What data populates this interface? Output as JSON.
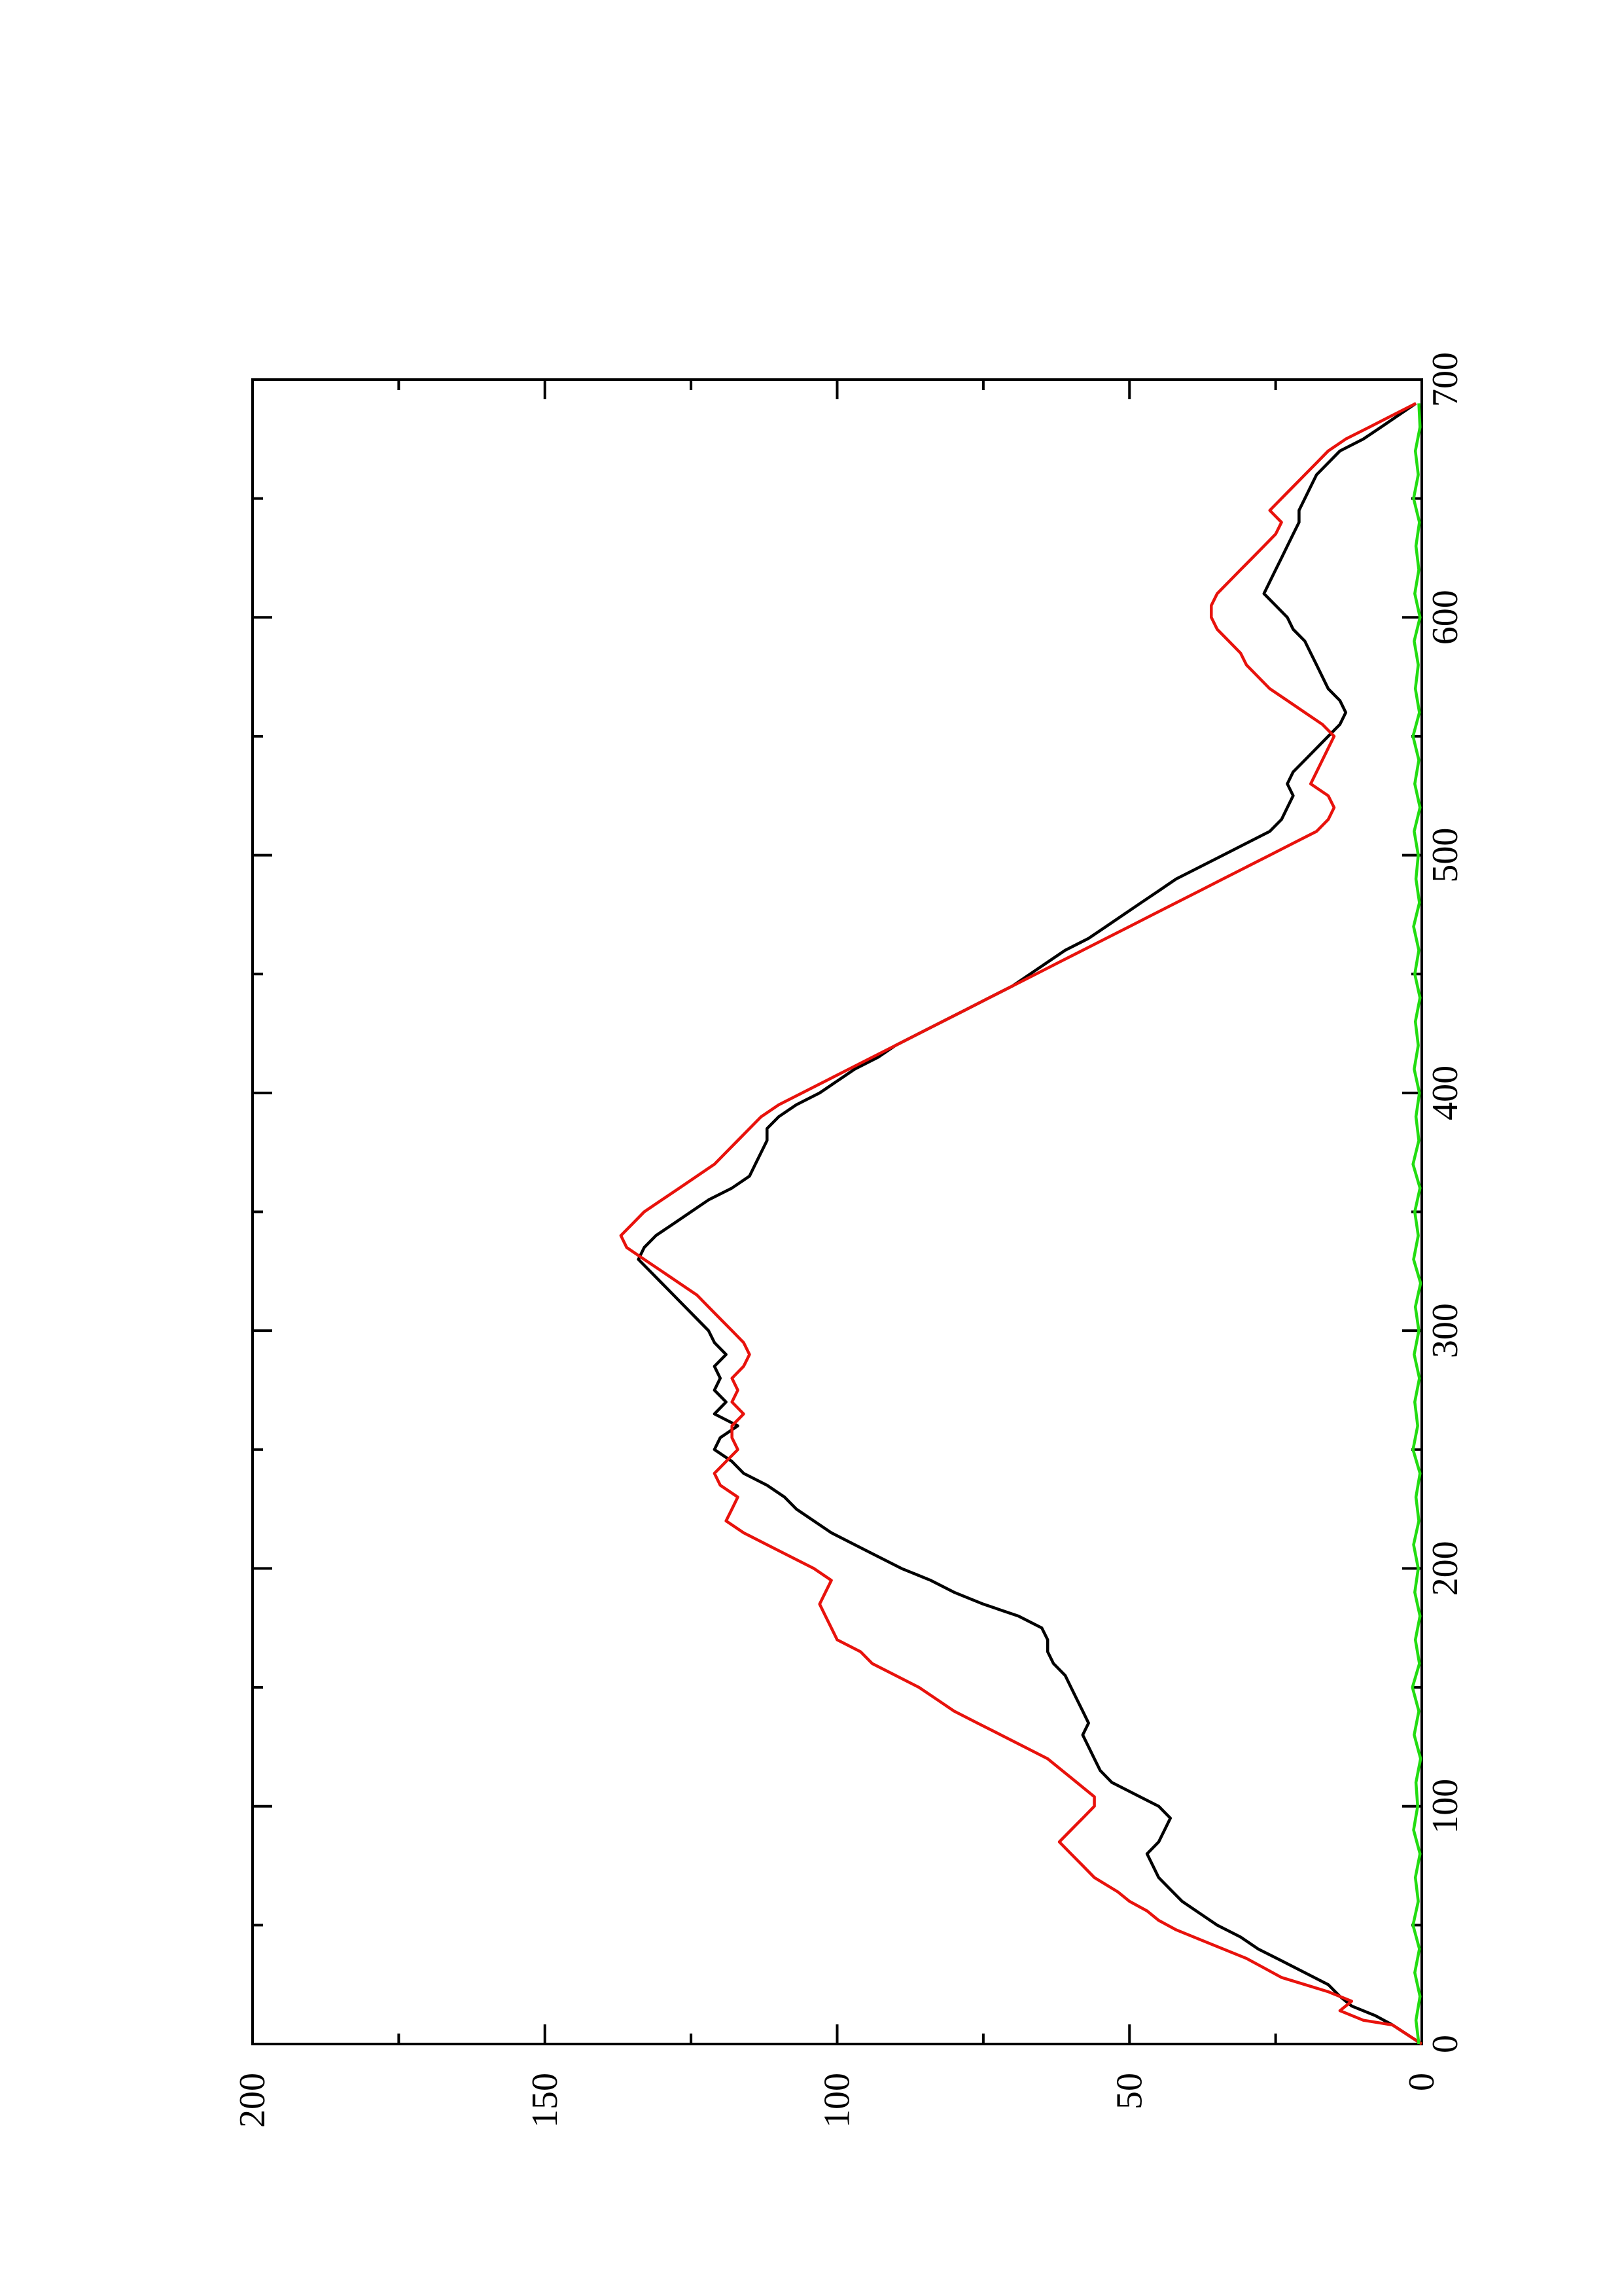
{
  "chart_data": {
    "type": "line",
    "title": "",
    "xlabel": "",
    "ylabel": "",
    "xlim": [
      0,
      700
    ],
    "ylim": [
      0,
      200
    ],
    "x_major_ticks": [
      0,
      100,
      200,
      300,
      400,
      500,
      600,
      700
    ],
    "x_minor_ticks": [
      50,
      150,
      250,
      350,
      450,
      550,
      650
    ],
    "y_major_ticks": [
      0,
      50,
      100,
      150,
      200
    ],
    "y_minor_ticks": [
      25,
      75,
      125,
      175
    ],
    "x_tick_labels": [
      "0",
      "100",
      "200",
      "300",
      "400",
      "500",
      "600",
      "700"
    ],
    "y_tick_labels": [
      "0",
      "50",
      "100",
      "150",
      "200"
    ],
    "grid": false,
    "legend": "none",
    "orientation": "page rotated 90 degrees counter-clockwise",
    "series": [
      {
        "color": "#000000",
        "x": [
          0,
          8,
          12,
          16,
          20,
          25,
          30,
          35,
          40,
          45,
          50,
          55,
          60,
          65,
          70,
          75,
          80,
          85,
          90,
          95,
          100,
          105,
          110,
          115,
          120,
          125,
          130,
          135,
          140,
          145,
          150,
          155,
          160,
          165,
          170,
          175,
          180,
          185,
          190,
          195,
          200,
          205,
          210,
          215,
          220,
          225,
          230,
          235,
          240,
          245,
          250,
          255,
          260,
          265,
          270,
          275,
          280,
          285,
          290,
          295,
          300,
          305,
          310,
          315,
          320,
          325,
          330,
          335,
          340,
          345,
          350,
          355,
          360,
          365,
          370,
          375,
          380,
          385,
          390,
          395,
          400,
          405,
          410,
          415,
          420,
          425,
          430,
          435,
          440,
          445,
          450,
          455,
          460,
          465,
          470,
          475,
          480,
          485,
          490,
          495,
          500,
          505,
          510,
          515,
          520,
          525,
          530,
          535,
          540,
          545,
          550,
          555,
          560,
          565,
          570,
          575,
          580,
          585,
          590,
          595,
          600,
          605,
          610,
          615,
          620,
          625,
          630,
          635,
          640,
          645,
          650,
          655,
          660,
          665,
          670,
          675,
          680,
          685,
          690
        ],
        "values": [
          0,
          5,
          8,
          12,
          14,
          16,
          20,
          24,
          28,
          31,
          35,
          38,
          41,
          43,
          45,
          46,
          47,
          45,
          44,
          43,
          45,
          49,
          53,
          55,
          56,
          57,
          58,
          57,
          58,
          59,
          60,
          61,
          63,
          64,
          64,
          65,
          69,
          75,
          80,
          84,
          89,
          93,
          97,
          101,
          104,
          107,
          109,
          112,
          116,
          118,
          121,
          120,
          117,
          121,
          119,
          121,
          120,
          121,
          119,
          121,
          122,
          124,
          126,
          128,
          130,
          132,
          134,
          133,
          131,
          128,
          125,
          122,
          118,
          115,
          114,
          113,
          112,
          112,
          110,
          107,
          103,
          100,
          97,
          93,
          90,
          86,
          82,
          78,
          74,
          70,
          67,
          64,
          61,
          57,
          54,
          51,
          48,
          45,
          42,
          38,
          34,
          30,
          26,
          24,
          23,
          22,
          23,
          22,
          20,
          18,
          16,
          14,
          13,
          14,
          16,
          17,
          18,
          19,
          20,
          22,
          23,
          25,
          27,
          26,
          25,
          24,
          23,
          22,
          21,
          21,
          20,
          19,
          18,
          16,
          14,
          10,
          7,
          4,
          1
        ]
      },
      {
        "color": "#e8120c",
        "x": [
          0,
          8,
          10,
          14,
          18,
          22,
          25,
          28,
          32,
          36,
          40,
          44,
          48,
          52,
          56,
          60,
          64,
          70,
          75,
          80,
          85,
          90,
          95,
          100,
          104,
          108,
          112,
          116,
          120,
          125,
          130,
          135,
          140,
          145,
          150,
          155,
          160,
          165,
          170,
          175,
          180,
          185,
          190,
          195,
          200,
          205,
          210,
          215,
          220,
          225,
          230,
          235,
          240,
          245,
          250,
          255,
          260,
          265,
          270,
          275,
          280,
          285,
          290,
          295,
          300,
          305,
          310,
          315,
          320,
          325,
          330,
          335,
          340,
          345,
          350,
          355,
          360,
          365,
          370,
          375,
          380,
          385,
          390,
          395,
          400,
          405,
          410,
          415,
          420,
          425,
          430,
          435,
          440,
          445,
          450,
          455,
          460,
          465,
          470,
          475,
          480,
          485,
          490,
          495,
          500,
          505,
          510,
          515,
          520,
          525,
          530,
          535,
          540,
          545,
          550,
          555,
          560,
          565,
          570,
          575,
          580,
          585,
          590,
          595,
          600,
          605,
          610,
          615,
          620,
          625,
          630,
          635,
          640,
          645,
          650,
          655,
          660,
          665,
          670,
          675,
          680,
          685,
          690
        ],
        "values": [
          0,
          5,
          10,
          14,
          12,
          16,
          20,
          24,
          27,
          30,
          34,
          38,
          42,
          45,
          47,
          50,
          52,
          56,
          58,
          60,
          62,
          60,
          58,
          56,
          56,
          58,
          60,
          62,
          64,
          68,
          72,
          76,
          80,
          83,
          86,
          90,
          94,
          96,
          100,
          101,
          102,
          103,
          102,
          101,
          104,
          108,
          112,
          116,
          119,
          118,
          117,
          120,
          121,
          119,
          117,
          118,
          118,
          116,
          118,
          117,
          118,
          116,
          115,
          116,
          118,
          120,
          122,
          124,
          127,
          130,
          133,
          136,
          137,
          135,
          133,
          130,
          127,
          124,
          121,
          119,
          117,
          115,
          113,
          110,
          106,
          102,
          98,
          94,
          90,
          86,
          82,
          78,
          74,
          70,
          66,
          62,
          58,
          54,
          50,
          46,
          42,
          38,
          34,
          30,
          26,
          22,
          18,
          16,
          15,
          16,
          19,
          18,
          17,
          16,
          15,
          17,
          20,
          23,
          26,
          28,
          30,
          31,
          33,
          35,
          36,
          36,
          35,
          33,
          31,
          29,
          27,
          25,
          24,
          26,
          24,
          22,
          20,
          18,
          16,
          13,
          9,
          5,
          1
        ]
      },
      {
        "color": "#22dd11",
        "x": [
          0,
          10,
          20,
          30,
          40,
          50,
          60,
          70,
          80,
          90,
          100,
          110,
          120,
          130,
          140,
          150,
          160,
          170,
          180,
          190,
          200,
          210,
          220,
          230,
          240,
          250,
          260,
          270,
          280,
          290,
          300,
          310,
          320,
          330,
          340,
          350,
          360,
          370,
          380,
          390,
          400,
          410,
          420,
          430,
          440,
          450,
          460,
          470,
          480,
          490,
          500,
          510,
          520,
          530,
          540,
          550,
          560,
          570,
          580,
          590,
          600,
          610,
          620,
          630,
          640,
          650,
          660,
          670,
          680,
          690
        ],
        "values": [
          0.5,
          1,
          0.3,
          1.2,
          0.4,
          1.5,
          0.6,
          1.1,
          0.3,
          1.4,
          0.7,
          1.0,
          0.2,
          1.3,
          0.5,
          1.6,
          0.4,
          1.1,
          0.3,
          1.2,
          0.6,
          1.4,
          0.5,
          1.0,
          0.3,
          1.5,
          0.7,
          1.2,
          0.4,
          1.3,
          0.5,
          1.1,
          0.2,
          1.4,
          0.6,
          1.2,
          0.3,
          1.5,
          0.5,
          1.0,
          0.4,
          1.3,
          0.6,
          1.1,
          0.3,
          1.2,
          0.5,
          1.4,
          0.4,
          1.0,
          0.6,
          1.3,
          0.3,
          1.2,
          0.5,
          1.5,
          0.4,
          1.1,
          0.6,
          1.3,
          0.3,
          1.2,
          0.5,
          1.0,
          0.4,
          1.4,
          0.6,
          1.1,
          0.3,
          0.5
        ]
      }
    ]
  }
}
